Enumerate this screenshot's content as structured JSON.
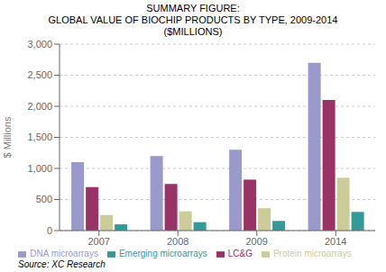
{
  "chart_data": {
    "type": "bar",
    "title": [
      "SUMMARY FIGURE:",
      "GLOBAL VALUE OF BIOCHIP PRODUCTS BY TYPE, 2009-2014",
      "($MILLIONS)"
    ],
    "categories": [
      "2007",
      "2008",
      "2009",
      "2014"
    ],
    "series": [
      {
        "name": "DNA microarrays",
        "color": "#9999cc",
        "values": [
          1100,
          1200,
          1300,
          2700
        ]
      },
      {
        "name": "LC&G",
        "color": "#993366",
        "values": [
          700,
          750,
          820,
          2100
        ]
      },
      {
        "name": "Protein microarrays",
        "color": "#cccc99",
        "values": [
          250,
          310,
          360,
          850
        ]
      },
      {
        "name": "Emerging microarrays",
        "color": "#339999",
        "values": [
          100,
          135,
          155,
          300
        ]
      }
    ],
    "ylabel": "$ Millions",
    "ylim": [
      0,
      3000
    ],
    "yticks": [
      0,
      500,
      {
        "value": 1000,
        "label": "1,000"
      },
      {
        "value": 1500,
        "label": "1,500"
      },
      {
        "value": 2000,
        "label": "2,000"
      },
      {
        "value": 2500,
        "label": "2,500"
      },
      {
        "value": 3000,
        "label": "3,000"
      }
    ],
    "grid": true,
    "legend": "bottom",
    "annotations": [
      "Source: XC Research"
    ]
  }
}
